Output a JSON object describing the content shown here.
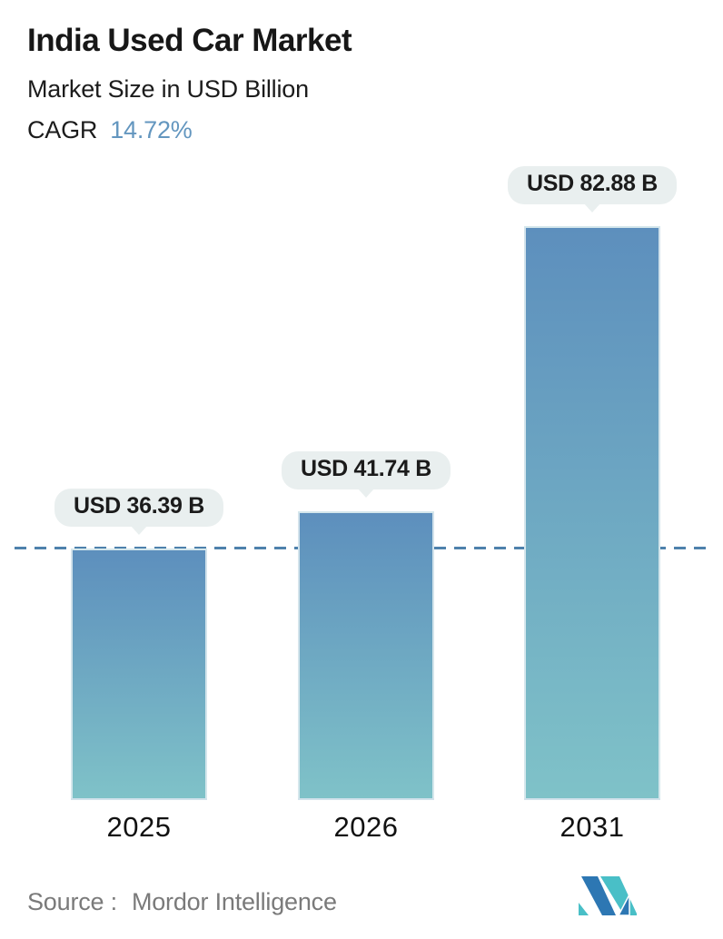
{
  "header": {
    "title": "India Used Car Market",
    "subtitle": "Market Size in USD Billion",
    "cagr_label": "CAGR",
    "cagr_value": "14.72%"
  },
  "chart_data": {
    "type": "bar",
    "categories": [
      "2025",
      "2026",
      "2031"
    ],
    "values": [
      36.39,
      41.74,
      82.88
    ],
    "value_labels": [
      "USD 36.39 B",
      "USD 41.74 B",
      "USD 82.88 B"
    ],
    "title": "India Used Car Market",
    "ylabel": "Market Size in USD Billion",
    "ylim": [
      0,
      82.88
    ],
    "grid": false,
    "legend": "none",
    "reference_line": {
      "value": 36.39,
      "style": "dashed",
      "note": "aligned with 2025 bar top"
    },
    "colors": {
      "bar_gradient_top": "#5d8fbd",
      "bar_gradient_bottom": "#7fc2c8",
      "dashed_line": "#4e81ac",
      "bubble_bg": "#e9efef",
      "cagr_value": "#6396bf",
      "logo_blue": "#2d77b3",
      "logo_teal": "#49bfc7"
    }
  },
  "footer": {
    "source_label": "Source :",
    "source_value": "Mordor Intelligence",
    "logo_name": "mordor-intelligence-logo"
  }
}
